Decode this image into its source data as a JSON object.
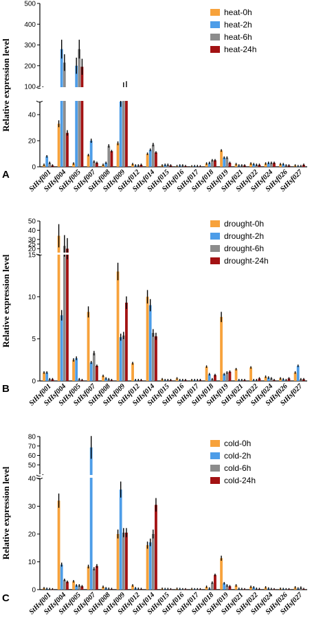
{
  "colors": [
    "#f7a23b",
    "#4d9de8",
    "#8c8c8c",
    "#a31213"
  ],
  "chart_data": [
    {
      "type": "bar",
      "panel": "A",
      "ylabel": "Relative expression level",
      "categories": [
        "StHsf001",
        "StHsf004",
        "StHsf005",
        "StHsf007",
        "StHsf008",
        "StHsf009",
        "StHsf012",
        "StHsf014",
        "StHsf015",
        "StHsf016",
        "StHsf017",
        "StHsf018",
        "StHsf019",
        "StHsf021",
        "StHsf022",
        "StHsf024",
        "StHsf026",
        "StHsf027"
      ],
      "ybreak": [
        50,
        100
      ],
      "ylim_low": [
        0,
        50
      ],
      "ylim_high": [
        100,
        500
      ],
      "yticks_low": [
        0,
        20,
        40
      ],
      "yticks_high": [
        100,
        200,
        300,
        400,
        500
      ],
      "legend_position": "top-right",
      "series": [
        {
          "name": "heat-0h",
          "values": [
            1.5,
            33,
            2.5,
            9,
            1.5,
            18,
            2,
            10,
            1,
            0.5,
            0.3,
            2.5,
            12.5,
            2,
            2.5,
            2.5,
            2,
            1
          ]
        },
        {
          "name": "heat-2h",
          "values": [
            8,
            280,
            200,
            20,
            3,
            50,
            1,
            13,
            1.5,
            1,
            0.5,
            3,
            7,
            1,
            2,
            3,
            2,
            0.5
          ]
        },
        {
          "name": "heat-6h",
          "values": [
            3,
            215,
            280,
            4,
            16,
            90,
            1,
            17,
            1.5,
            1,
            0.5,
            5,
            7,
            1,
            1.5,
            3,
            1,
            0.5
          ]
        },
        {
          "name": "heat-24h",
          "values": [
            1,
            26,
            195,
            3,
            12,
            95,
            1.5,
            11,
            1,
            0.5,
            0.3,
            5,
            3,
            1,
            1.5,
            3,
            1,
            1.5
          ]
        }
      ]
    },
    {
      "type": "bar",
      "panel": "B",
      "ylabel": "Relative expression level",
      "categories": [
        "StHsf001",
        "StHsf004",
        "StHsf005",
        "StHsf007",
        "StHsf008",
        "StHsf009",
        "StHsf012",
        "StHsf014",
        "StHsf015",
        "StHsf016",
        "StHsf017",
        "StHsf018",
        "StHsf019",
        "StHsf021",
        "StHsf022",
        "StHsf024",
        "StHsf026",
        "StHsf027"
      ],
      "ybreak": [
        15,
        15
      ],
      "ylim_low": [
        0,
        15
      ],
      "ylim_high": [
        15,
        50
      ],
      "yticks_low": [
        0,
        5,
        10,
        15
      ],
      "yticks_high": [
        20,
        25,
        30,
        40,
        50
      ],
      "legend_position": "top-right",
      "series": [
        {
          "name": "drought-0h",
          "values": [
            1,
            34,
            2.5,
            8.2,
            0.6,
            13,
            2.1,
            10,
            0.2,
            0.3,
            0.1,
            1.7,
            7.6,
            1.4,
            1.6,
            0.5,
            0.3,
            1
          ]
        },
        {
          "name": "drought-2h",
          "values": [
            1,
            7.8,
            2.7,
            2.2,
            0.3,
            5.2,
            0.1,
            9,
            0.1,
            0.1,
            0.1,
            0.8,
            0.8,
            0.1,
            0.1,
            0.4,
            0.2,
            1.8
          ]
        },
        {
          "name": "drought-6h",
          "values": [
            0.2,
            23,
            0.2,
            3.3,
            0.2,
            5.4,
            0.1,
            5.7,
            0.1,
            0.1,
            0.1,
            0.2,
            1,
            0.1,
            0.1,
            0.3,
            0.1,
            0.2
          ]
        },
        {
          "name": "drought-24h",
          "values": [
            0.2,
            20,
            0.1,
            1.8,
            0.1,
            9.3,
            0.1,
            5.3,
            0.1,
            0.1,
            0.1,
            0.7,
            1.1,
            0.1,
            0.3,
            0.1,
            0.3,
            0.2
          ]
        }
      ]
    },
    {
      "type": "bar",
      "panel": "C",
      "ylabel": "Relative expression level",
      "categories": [
        "StHsf001",
        "StHsf004",
        "StHsf005",
        "StHsf007",
        "StHsf008",
        "StHsf009",
        "StHsf012",
        "StHsf014",
        "StHsf015",
        "StHsf016",
        "StHsf017",
        "StHsf018",
        "StHsf019",
        "StHsf021",
        "StHsf022",
        "StHsf024",
        "StHsf026",
        "StHsf027"
      ],
      "ybreak": [
        40,
        40
      ],
      "ylim_low": [
        0,
        40
      ],
      "ylim_high": [
        40,
        80
      ],
      "yticks_low": [
        0,
        10,
        20,
        30,
        40
      ],
      "yticks_high": [
        50,
        60,
        70,
        80
      ],
      "legend_position": "top-right",
      "series": [
        {
          "name": "cold-0h",
          "values": [
            0.5,
            32,
            3,
            8.3,
            1,
            20,
            1.5,
            16,
            0.3,
            0.3,
            0.2,
            1,
            11.3,
            1.5,
            1,
            0.8,
            0.3,
            0.8
          ]
        },
        {
          "name": "cold-2h",
          "values": [
            0.3,
            9,
            1.5,
            68.5,
            0.5,
            36,
            0.5,
            17,
            0.2,
            0.2,
            0.1,
            0.4,
            2.3,
            0.3,
            0.8,
            0.4,
            0.2,
            0.4
          ]
        },
        {
          "name": "cold-6h",
          "values": [
            0.2,
            3.5,
            1.5,
            7.5,
            0.3,
            20.5,
            0.3,
            20,
            0.2,
            0.1,
            0.1,
            2.5,
            1.5,
            0.2,
            0.3,
            0.2,
            0.1,
            0.7
          ]
        },
        {
          "name": "cold-24h",
          "values": [
            0.1,
            2.8,
            1.2,
            8.5,
            0.2,
            20.5,
            0.2,
            30.5,
            0.1,
            0.1,
            0.1,
            5.3,
            1.2,
            0.1,
            0.2,
            0.1,
            0.1,
            0.2
          ]
        }
      ]
    }
  ]
}
